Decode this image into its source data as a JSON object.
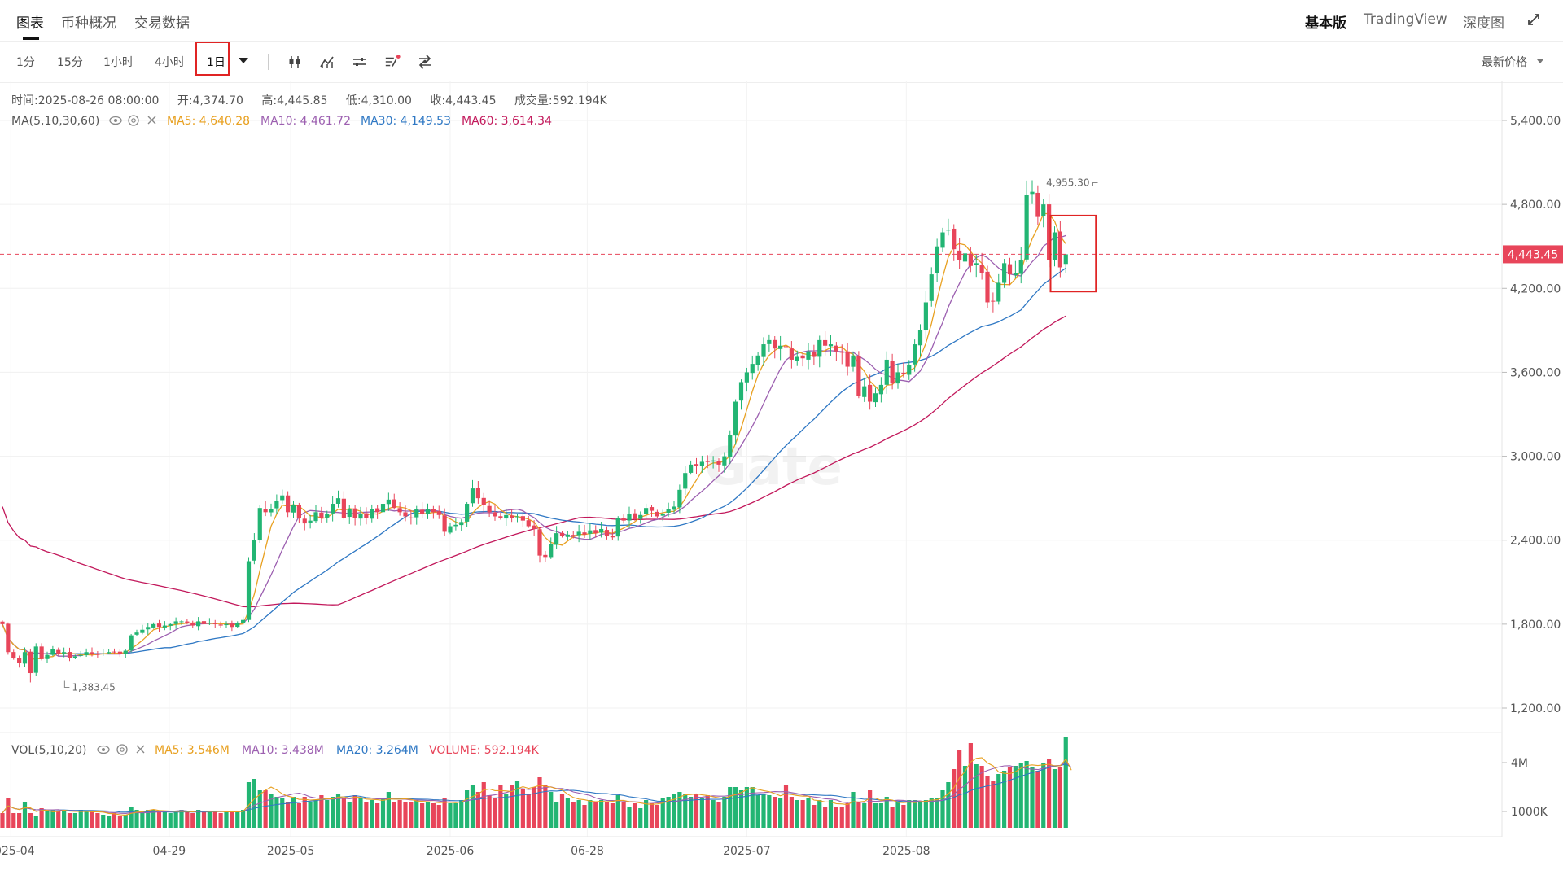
{
  "header": {
    "tabs": [
      {
        "label": "图表",
        "active": true
      },
      {
        "label": "币种概况",
        "active": false
      },
      {
        "label": "交易数据",
        "active": false
      }
    ],
    "right_tabs": [
      {
        "label": "基本版",
        "active": true
      },
      {
        "label": "TradingView",
        "active": false
      },
      {
        "label": "深度图",
        "active": false
      }
    ]
  },
  "toolbar": {
    "intervals": [
      "1分",
      "15分",
      "1小时",
      "4小时",
      "1日"
    ],
    "selected_interval": "1日",
    "price_type": "最新价格",
    "icons": [
      "candlestick-icon",
      "indicator-icon",
      "settings-sliders-icon",
      "drawing-list-icon",
      "swap-icon"
    ]
  },
  "ohlc": {
    "time_label": "时间:",
    "time": "2025-08-26 08:00:00",
    "open_label": "开:",
    "open": "4,374.70",
    "high_label": "高:",
    "high": "4,445.85",
    "low_label": "低:",
    "low": "4,310.00",
    "close_label": "收:",
    "close": "4,443.45",
    "volume_label": "成交量:",
    "volume": "592.194K"
  },
  "ma_legend": {
    "name": "MA(5,10,30,60)",
    "items": [
      {
        "label": "MA5: 4,640.28",
        "color": "#e8a020"
      },
      {
        "label": "MA10: 4,461.72",
        "color": "#9c5fb0"
      },
      {
        "label": "MA30: 4,149.53",
        "color": "#2f78c4"
      },
      {
        "label": "MA60: 3,614.34",
        "color": "#c2185b"
      }
    ]
  },
  "vol_legend": {
    "name": "VOL(5,10,20)",
    "items": [
      {
        "label": "MA5: 3.546M",
        "color": "#e8a020"
      },
      {
        "label": "MA10: 3.438M",
        "color": "#9c5fb0"
      },
      {
        "label": "MA20: 3.264M",
        "color": "#2f78c4"
      },
      {
        "label": "VOLUME: 592.194K",
        "color": "#e8455a"
      }
    ]
  },
  "chart_data": {
    "type": "candlestick",
    "price_axis_ticks": [
      "5,400.00",
      "4,800.00",
      "4,200.00",
      "3,600.00",
      "3,000.00",
      "2,400.00",
      "1,800.00",
      "1,200.00"
    ],
    "price_axis_values": [
      5400,
      4800,
      4200,
      3600,
      3000,
      2400,
      1800,
      1200
    ],
    "price_range": [
      1000,
      5600
    ],
    "volume_axis_ticks": [
      "4M",
      "1000K"
    ],
    "volume_axis_values": [
      4000000,
      1000000
    ],
    "volume_range": [
      0,
      6400000
    ],
    "date_ticks": [
      {
        "label": "2025-04",
        "index": 1.5
      },
      {
        "label": "04-29",
        "index": 29.8
      },
      {
        "label": "2025-05",
        "index": 51.5
      },
      {
        "label": "2025-06",
        "index": 80
      },
      {
        "label": "06-28",
        "index": 104.5
      },
      {
        "label": "2025-07",
        "index": 133
      },
      {
        "label": "2025-08",
        "index": 161.5
      }
    ],
    "last_price": 4443.45,
    "last_price_label": "4,443.45",
    "high_marker": {
      "label": "4,955.30",
      "value": 4955.3,
      "index": 196
    },
    "low_marker": {
      "label": "1,383.45",
      "value": 1383.45,
      "index": 5
    },
    "watermark": "Gate",
    "closes": [
      1800,
      1600,
      1560,
      1520,
      1600,
      1450,
      1640,
      1550,
      1580,
      1620,
      1590,
      1600,
      1560,
      1570,
      1580,
      1600,
      1590,
      1580,
      1590,
      1600,
      1600,
      1590,
      1610,
      1720,
      1740,
      1760,
      1780,
      1800,
      1780,
      1790,
      1800,
      1820,
      1820,
      1810,
      1790,
      1820,
      1800,
      1810,
      1800,
      1790,
      1800,
      1780,
      1810,
      1830,
      2250,
      2400,
      2630,
      2600,
      2620,
      2680,
      2720,
      2600,
      2650,
      2560,
      2520,
      2540,
      2600,
      2560,
      2590,
      2660,
      2700,
      2560,
      2620,
      2560,
      2590,
      2560,
      2620,
      2600,
      2660,
      2690,
      2630,
      2600,
      2570,
      2560,
      2620,
      2590,
      2620,
      2600,
      2580,
      2460,
      2500,
      2510,
      2530,
      2660,
      2770,
      2700,
      2650,
      2600,
      2570,
      2560,
      2580,
      2560,
      2570,
      2540,
      2500,
      2480,
      2290,
      2280,
      2370,
      2450,
      2430,
      2440,
      2430,
      2460,
      2440,
      2470,
      2450,
      2480,
      2430,
      2420,
      2560,
      2540,
      2590,
      2550,
      2580,
      2630,
      2610,
      2570,
      2590,
      2620,
      2640,
      2760,
      2880,
      2940,
      2930,
      2960,
      2960,
      2970,
      2940,
      3000,
      3150,
      3390,
      3530,
      3600,
      3660,
      3720,
      3800,
      3830,
      3770,
      3790,
      3780,
      3690,
      3710,
      3700,
      3750,
      3710,
      3830,
      3790,
      3800,
      3750,
      3740,
      3640,
      3720,
      3430,
      3500,
      3390,
      3450,
      3510,
      3690,
      3520,
      3600,
      3590,
      3650,
      3800,
      3900,
      4100,
      4300,
      4500,
      4600,
      4620,
      4480,
      4400,
      4450,
      4360,
      4380,
      4310,
      4100,
      4110,
      4240,
      4380,
      4300,
      4310,
      4400,
      4870,
      4890,
      4710,
      4800,
      4400,
      4600,
      4350,
      4443.45
    ],
    "volumes": [
      900000,
      1800000,
      900000,
      900000,
      1600000,
      900000,
      700000,
      1200000,
      1000000,
      1100000,
      1000000,
      1100000,
      900000,
      900000,
      1100000,
      1000000,
      1000000,
      900000,
      800000,
      700000,
      900000,
      700000,
      800000,
      1300000,
      1100000,
      1000000,
      1100000,
      1100000,
      1000000,
      1000000,
      900000,
      1000000,
      1100000,
      1000000,
      900000,
      1100000,
      1000000,
      1000000,
      1000000,
      900000,
      1000000,
      1000000,
      1000000,
      1100000,
      2800000,
      3000000,
      2300000,
      2300000,
      2100000,
      1900000,
      1800000,
      1600000,
      1900000,
      1500000,
      1900000,
      1600000,
      1700000,
      2000000,
      1700000,
      1900000,
      2100000,
      1800000,
      1600000,
      2000000,
      1800000,
      1600000,
      1700000,
      1500000,
      1800000,
      2200000,
      1600000,
      1700000,
      1600000,
      1600000,
      1700000,
      1500000,
      1600000,
      1500000,
      1400000,
      1800000,
      1500000,
      1500000,
      1700000,
      2300000,
      2600000,
      2200000,
      2800000,
      2000000,
      1800000,
      2600000,
      2100000,
      2600000,
      2900000,
      2400000,
      2100000,
      2500000,
      3100000,
      2600000,
      2200000,
      1600000,
      2100000,
      1800000,
      1600000,
      1700000,
      1400000,
      1700000,
      1600000,
      1700000,
      1600000,
      1500000,
      2000000,
      1600000,
      1300000,
      1500000,
      1200000,
      1700000,
      1500000,
      1400000,
      1800000,
      1900000,
      2100000,
      2200000,
      2100000,
      1900000,
      2100000,
      1800000,
      2000000,
      1700000,
      1600000,
      1900000,
      2500000,
      2500000,
      2300000,
      2500000,
      2500000,
      2000000,
      2100000,
      2000000,
      1900000,
      1800000,
      2600000,
      1900000,
      1700000,
      1700000,
      1800000,
      1400000,
      1700000,
      1300000,
      1700000,
      1300000,
      1300000,
      1500000,
      2200000,
      1600000,
      1500000,
      2300000,
      1500000,
      1500000,
      1900000,
      1300000,
      1600000,
      1400000,
      1700000,
      1700000,
      1600000,
      1700000,
      1800000,
      1800000,
      2300000,
      2800000,
      3600000,
      4800000,
      3800000,
      5200000,
      3900000,
      3800000,
      3200000,
      2900000,
      3300000,
      3500000,
      3700000,
      3800000,
      4000000,
      4100000,
      3700000,
      3500000,
      4000000,
      4200000,
      3600000,
      3700000,
      5600000,
      600000
    ]
  }
}
